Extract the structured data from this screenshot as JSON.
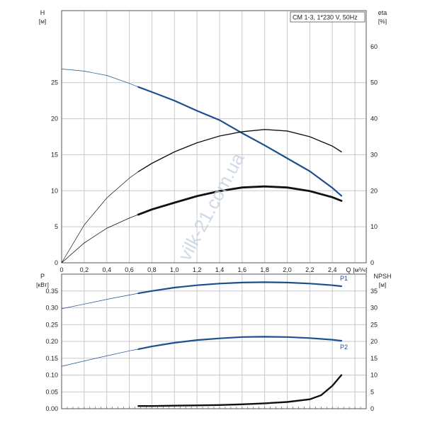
{
  "colors": {
    "background": "#ffffff",
    "grid": "#c9c9c9",
    "axis": "#555555",
    "text": "#222222",
    "curve_blue": "#1c4f8f",
    "curve_black": "#111111",
    "watermark": "#c4d0e2"
  },
  "legend_box": "CM 1-3, 1*230 V, 50Hz",
  "watermark": "vilk-21.com.ua",
  "chart_data": [
    {
      "type": "line",
      "name": "performance",
      "xlabel": "Q",
      "xunit": "[м³/ч]",
      "ylabel_left": "H",
      "yunit_left": "[м]",
      "ylabel_right": "eta",
      "yunit_right": "[%]",
      "xlim": [
        0,
        2.7
      ],
      "ylim_left": [
        0,
        35
      ],
      "ylim_right": [
        0,
        70
      ],
      "xticks": [
        "0",
        "0,2",
        "0,4",
        "0,6",
        "0,8",
        "1,0",
        "1,2",
        "1,4",
        "1,6",
        "1,8",
        "2,0",
        "2,2",
        "2,4"
      ],
      "yticks_left": [
        "0",
        "5",
        "10",
        "15",
        "20",
        "25"
      ],
      "yticks_right": [
        "0",
        "10",
        "20",
        "30",
        "40",
        "50",
        "60"
      ],
      "grid": true,
      "series": [
        {
          "axis": "left",
          "color": "#1c4f8f",
          "thin_until": 0.68,
          "x": [
            0,
            0.2,
            0.4,
            0.6,
            0.68,
            0.8,
            1.0,
            1.2,
            1.4,
            1.6,
            1.8,
            2.0,
            2.2,
            2.4,
            2.48
          ],
          "y": [
            26.9,
            26.6,
            26.0,
            24.9,
            24.4,
            23.7,
            22.5,
            21.1,
            19.8,
            18.0,
            16.3,
            14.5,
            12.7,
            10.4,
            9.3
          ]
        },
        {
          "axis": "right",
          "color": "#111111",
          "weight": "thin",
          "thin_until": 0.68,
          "x": [
            0,
            0.2,
            0.4,
            0.6,
            0.68,
            0.8,
            1.0,
            1.2,
            1.4,
            1.6,
            1.8,
            2.0,
            2.2,
            2.4,
            2.48
          ],
          "y": [
            0,
            10.5,
            18.0,
            23.5,
            25.3,
            27.6,
            30.8,
            33.3,
            35.2,
            36.4,
            37.0,
            36.6,
            35.0,
            32.4,
            30.8
          ]
        },
        {
          "axis": "right",
          "color": "#111111",
          "weight": "bold",
          "thin_until": 0.68,
          "x": [
            0,
            0.2,
            0.4,
            0.6,
            0.68,
            0.8,
            1.0,
            1.2,
            1.4,
            1.6,
            1.8,
            2.0,
            2.2,
            2.4,
            2.48
          ],
          "y": [
            0,
            5.5,
            9.6,
            12.4,
            13.4,
            14.8,
            16.7,
            18.5,
            19.9,
            20.9,
            21.2,
            20.9,
            19.9,
            18.2,
            17.2
          ]
        }
      ]
    },
    {
      "type": "line",
      "name": "power_npsh",
      "ylabel_left": "P",
      "yunit_left": "[кВт]",
      "ylabel_right": "NPSH",
      "yunit_right": "[м]",
      "xlim": [
        0,
        2.7
      ],
      "ylim_left": [
        0,
        0.4
      ],
      "ylim_right": [
        0,
        40
      ],
      "yticks_left": [
        "0.00",
        "0.05",
        "0.10",
        "0.15",
        "0.20",
        "0.25",
        "0.30",
        "0.35"
      ],
      "yticks_right": [
        "0",
        "5",
        "10",
        "15",
        "20",
        "25",
        "30",
        "35"
      ],
      "grid": true,
      "series": [
        {
          "name": "P1",
          "axis": "left",
          "color": "#1c4f8f",
          "thin_until": 0.68,
          "x": [
            0,
            0.2,
            0.4,
            0.6,
            0.68,
            0.8,
            1.0,
            1.2,
            1.4,
            1.6,
            1.8,
            2.0,
            2.2,
            2.4,
            2.48
          ],
          "y": [
            0.297,
            0.311,
            0.325,
            0.338,
            0.343,
            0.35,
            0.36,
            0.367,
            0.372,
            0.375,
            0.376,
            0.375,
            0.372,
            0.367,
            0.364
          ]
        },
        {
          "name": "P2",
          "axis": "left",
          "color": "#1c4f8f",
          "thin_until": 0.68,
          "x": [
            0,
            0.2,
            0.4,
            0.6,
            0.68,
            0.8,
            1.0,
            1.2,
            1.4,
            1.6,
            1.8,
            2.0,
            2.2,
            2.4,
            2.48
          ],
          "y": [
            0.126,
            0.142,
            0.157,
            0.172,
            0.177,
            0.185,
            0.196,
            0.204,
            0.209,
            0.213,
            0.214,
            0.213,
            0.21,
            0.205,
            0.202
          ]
        },
        {
          "axis": "right",
          "color": "#111111",
          "x": [
            0.68,
            0.8,
            1.0,
            1.2,
            1.4,
            1.6,
            1.8,
            2.0,
            2.2,
            2.3,
            2.4,
            2.48
          ],
          "y": [
            0.8,
            0.8,
            0.9,
            1.0,
            1.1,
            1.3,
            1.6,
            2.0,
            2.8,
            4.0,
            6.8,
            10.0
          ]
        }
      ]
    }
  ]
}
